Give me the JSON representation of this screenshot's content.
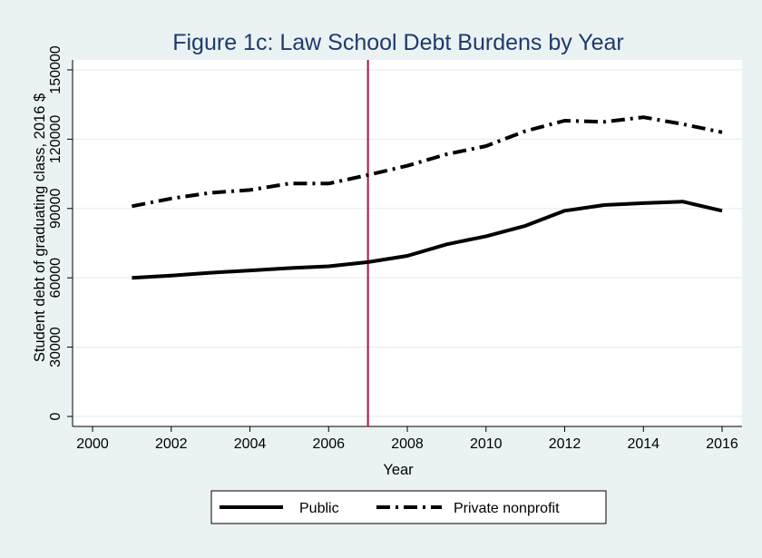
{
  "chart_data": {
    "type": "line",
    "title": "Figure 1c: Law School Debt Burdens by Year",
    "xlabel": "Year",
    "ylabel": "Student debt of graduating class, 2016 $",
    "xlim": [
      2000,
      2016
    ],
    "ylim": [
      0,
      150000
    ],
    "xticks": [
      "2000",
      "2002",
      "2004",
      "2006",
      "2008",
      "2010",
      "2012",
      "2014",
      "2016"
    ],
    "yticks": [
      "0",
      "30000",
      "60000",
      "90000",
      "120000",
      "150000"
    ],
    "grid": "horizontal",
    "legend_position": "bottom",
    "reference_line": {
      "x": 2007,
      "color": "#b0123c"
    },
    "x": [
      2001,
      2002,
      2003,
      2004,
      2005,
      2006,
      2007,
      2008,
      2009,
      2010,
      2011,
      2012,
      2013,
      2014,
      2015,
      2016
    ],
    "series": [
      {
        "name": "Public",
        "style": "solid",
        "color": "#000000",
        "values": [
          60000,
          61000,
          62200,
          63200,
          64200,
          65000,
          66800,
          69500,
          74500,
          78000,
          82500,
          89000,
          91500,
          92300,
          93000,
          89000
        ]
      },
      {
        "name": "Private nonprofit",
        "style": "dash-dot",
        "color": "#000000",
        "values": [
          91000,
          94300,
          96800,
          98000,
          100800,
          100800,
          104500,
          108500,
          113500,
          117000,
          123500,
          128000,
          127500,
          129500,
          126500,
          123000
        ]
      }
    ]
  }
}
